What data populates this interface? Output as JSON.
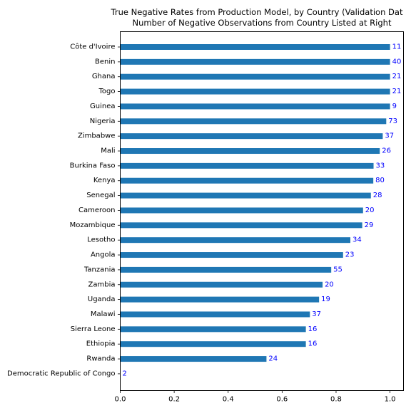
{
  "chart_data": {
    "type": "bar",
    "orientation": "horizontal",
    "title_lines": [
      "True Negative Rates from Production Model, by Country (Validation Dat",
      "Number of Negative Observations from Country Listed at Right"
    ],
    "xlabel": "",
    "ylabel": "",
    "xlim": [
      0,
      1.05
    ],
    "xticks": [
      "0.0",
      "0.2",
      "0.4",
      "0.6",
      "0.8",
      "1.0"
    ],
    "grid": false,
    "bar_color": "#1f77b4",
    "label_color": "#0000ff",
    "categories": [
      "Côte d'Ivoire",
      "Benin",
      "Ghana",
      "Togo",
      "Guinea",
      "Nigeria",
      "Zimbabwe",
      "Mali",
      "Burkina Faso",
      "Kenya",
      "Senegal",
      "Cameroon",
      "Mozambique",
      "Lesotho",
      "Angola",
      "Tanzania",
      "Zambia",
      "Uganda",
      "Malawi",
      "Sierra Leone",
      "Ethiopia",
      "Rwanda",
      "Democratic Republic of Congo"
    ],
    "values": [
      1.0,
      1.0,
      1.0,
      1.0,
      1.0,
      0.986,
      0.973,
      0.962,
      0.939,
      0.938,
      0.929,
      0.9,
      0.897,
      0.853,
      0.826,
      0.782,
      0.75,
      0.737,
      0.703,
      0.688,
      0.688,
      0.542,
      0.0
    ],
    "counts": [
      "11",
      "40",
      "21",
      "21",
      "9",
      "73",
      "37",
      "26",
      "33",
      "80",
      "28",
      "20",
      "29",
      "34",
      "23",
      "55",
      "20",
      "19",
      "37",
      "16",
      "16",
      "24",
      "2"
    ]
  }
}
